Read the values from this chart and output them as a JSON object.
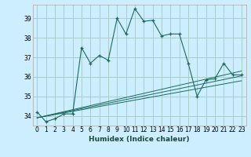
{
  "xlabel": "Humidex (Indice chaleur)",
  "bg_color": "#cceeff",
  "grid_color": "#aacccc",
  "line_color": "#1a6b5a",
  "xlim": [
    -0.5,
    23.5
  ],
  "ylim": [
    33.5,
    39.7
  ],
  "yticks": [
    34,
    35,
    36,
    37,
    38,
    39
  ],
  "xticks": [
    0,
    1,
    2,
    3,
    4,
    5,
    6,
    7,
    8,
    9,
    10,
    11,
    12,
    13,
    14,
    15,
    16,
    17,
    18,
    19,
    20,
    21,
    22,
    23
  ],
  "series": [
    [
      0,
      34.2
    ],
    [
      1,
      33.7
    ],
    [
      2,
      33.85
    ],
    [
      3,
      34.1
    ],
    [
      4,
      34.1
    ],
    [
      5,
      37.5
    ],
    [
      6,
      36.7
    ],
    [
      7,
      37.1
    ],
    [
      8,
      36.85
    ],
    [
      9,
      39.0
    ],
    [
      10,
      38.2
    ],
    [
      11,
      39.5
    ],
    [
      12,
      38.85
    ],
    [
      13,
      38.9
    ],
    [
      14,
      38.1
    ],
    [
      15,
      38.2
    ],
    [
      16,
      38.2
    ],
    [
      17,
      36.7
    ],
    [
      18,
      35.0
    ],
    [
      19,
      35.85
    ],
    [
      20,
      35.9
    ],
    [
      21,
      36.7
    ],
    [
      22,
      36.1
    ],
    [
      23,
      36.1
    ]
  ],
  "linear_lines": [
    {
      "x": [
        0,
        23
      ],
      "y": [
        33.9,
        35.8
      ]
    },
    {
      "x": [
        0,
        23
      ],
      "y": [
        33.9,
        36.05
      ]
    },
    {
      "x": [
        0,
        23
      ],
      "y": [
        33.9,
        36.3
      ]
    }
  ],
  "xlabel_fontsize": 6.5,
  "tick_fontsize": 5.5
}
